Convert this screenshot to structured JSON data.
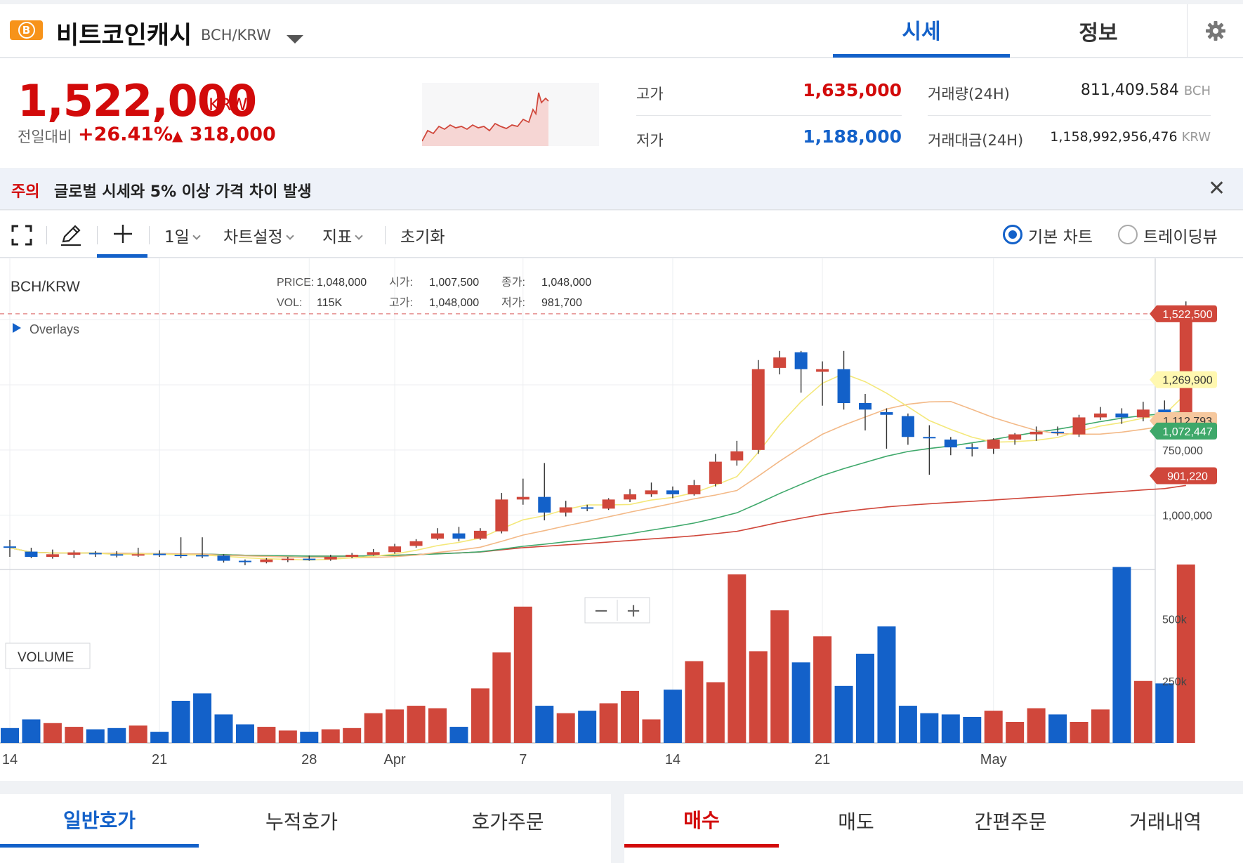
{
  "header": {
    "coin_symbol_glyph": "B",
    "coin_name": "비트코인캐시",
    "pair": "BCH/KRW",
    "tabs": [
      "시세",
      "정보"
    ],
    "settings_icon": "gear-icon"
  },
  "summary": {
    "price": "1,522,000",
    "price_unit": "KRW",
    "change_label": "전일대비",
    "change_percent": "+26.41%",
    "change_arrow": "▲",
    "change_amount": "318,000",
    "high_label": "고가",
    "high_value": "1,635,000",
    "low_label": "저가",
    "low_value": "1,188,000",
    "volume_label": "거래량(24H)",
    "volume_value": "811,409.584",
    "volume_unit": "BCH",
    "amount_label": "거래대금(24H)",
    "amount_value": "1,158,992,956,476",
    "amount_unit": "KRW"
  },
  "warning": {
    "tag": "주의",
    "text": "글로벌 시세와 5% 이상 가격 차이 발생",
    "close_icon": "close-icon"
  },
  "toolbar": {
    "fullscreen_icon": "fullscreen-icon",
    "draw_icon": "pencil-icon",
    "cross_icon": "crosshair-icon",
    "interval": "1일",
    "chart_settings": "차트설정",
    "indicators": "지표",
    "reset": "초기화",
    "view_basic": "기본 차트",
    "view_tradingview": "트레이딩뷰"
  },
  "chart_info": {
    "symbol": "BCH/KRW",
    "price_label": "PRICE:",
    "price_value": "1,048,000",
    "open_label": "시가:",
    "open_value": "1,007,500",
    "close_label": "종가:",
    "close_value": "1,048,000",
    "vol_label": "VOL:",
    "vol_value": "115K",
    "high_label": "고가:",
    "high_value": "1,048,000",
    "low_label": "저가:",
    "low_value": "981,700",
    "overlays": "Overlays",
    "volume_panel": "VOLUME",
    "zoom_minus": "−",
    "zoom_plus": "+"
  },
  "chart_data": {
    "type": "candlestick",
    "title": "",
    "y_ticks": [
      "750,000",
      "1,000,000"
    ],
    "volume_ticks": [
      "250k",
      "500k"
    ],
    "x_ticks": [
      "14",
      "21",
      "28",
      "Apr",
      "7",
      "14",
      "21",
      "May"
    ],
    "price_tags": [
      {
        "label": "1,522,500",
        "value": 1522500,
        "color": "#d0473b"
      },
      {
        "label": "1,269,900",
        "value": 1269900,
        "color": "#fff8b0"
      },
      {
        "label": "1,112,793",
        "value": 1112793,
        "color": "#f6c89e"
      },
      {
        "label": "1,072,447",
        "value": 1072447,
        "color": "#3ea86a"
      },
      {
        "label": "901,220",
        "value": 901220,
        "color": "#d0473b"
      }
    ],
    "ylim": [
      555000,
      1735000
    ],
    "volume_max": 680000,
    "up_color": "#d0473b",
    "down_color": "#1361c9",
    "candles": [
      [
        630,
        625,
        655,
        590,
        60000
      ],
      [
        610,
        590,
        625,
        585,
        95000
      ],
      [
        590,
        600,
        618,
        583,
        80000
      ],
      [
        598,
        607,
        615,
        585,
        65000
      ],
      [
        605,
        600,
        612,
        590,
        55000
      ],
      [
        600,
        598,
        612,
        588,
        60000
      ],
      [
        598,
        600,
        625,
        590,
        70000
      ],
      [
        602,
        598,
        615,
        590,
        45000
      ],
      [
        598,
        595,
        665,
        585,
        170000
      ],
      [
        597,
        594,
        665,
        585,
        200000
      ],
      [
        595,
        575,
        600,
        568,
        115000
      ],
      [
        575,
        570,
        580,
        558,
        75000
      ],
      [
        570,
        580,
        585,
        565,
        65000
      ],
      [
        580,
        583,
        590,
        570,
        50000
      ],
      [
        583,
        580,
        595,
        575,
        45000
      ],
      [
        580,
        590,
        598,
        575,
        55000
      ],
      [
        590,
        598,
        605,
        585,
        60000
      ],
      [
        598,
        608,
        620,
        595,
        120000
      ],
      [
        608,
        630,
        640,
        602,
        135000
      ],
      [
        632,
        650,
        658,
        625,
        150000
      ],
      [
        660,
        680,
        700,
        655,
        140000
      ],
      [
        680,
        660,
        705,
        650,
        65000
      ],
      [
        660,
        690,
        700,
        655,
        220000
      ],
      [
        688,
        810,
        835,
        680,
        365000
      ],
      [
        810,
        820,
        890,
        790,
        550000
      ],
      [
        820,
        760,
        950,
        730,
        150000
      ],
      [
        760,
        780,
        805,
        745,
        120000
      ],
      [
        780,
        775,
        790,
        765,
        130000
      ],
      [
        775,
        810,
        815,
        770,
        160000
      ],
      [
        810,
        830,
        850,
        800,
        210000
      ],
      [
        830,
        845,
        875,
        820,
        95000
      ],
      [
        845,
        830,
        860,
        815,
        215000
      ],
      [
        830,
        865,
        885,
        825,
        330000
      ],
      [
        870,
        955,
        985,
        860,
        245000
      ],
      [
        960,
        995,
        1035,
        940,
        680000
      ],
      [
        1000,
        1310,
        1345,
        985,
        370000
      ],
      [
        1315,
        1355,
        1380,
        1290,
        535000
      ],
      [
        1375,
        1310,
        1380,
        1220,
        325000
      ],
      [
        1300,
        1310,
        1340,
        1170,
        430000
      ],
      [
        1310,
        1180,
        1380,
        1155,
        230000
      ],
      [
        1180,
        1155,
        1215,
        1075,
        360000
      ],
      [
        1145,
        1135,
        1160,
        1005,
        470000
      ],
      [
        1130,
        1050,
        1140,
        1020,
        150000
      ],
      [
        1050,
        1045,
        1095,
        905,
        120000
      ],
      [
        1040,
        1010,
        1050,
        980,
        115000
      ],
      [
        1010,
        1005,
        1025,
        975,
        105000
      ],
      [
        1005,
        1040,
        1045,
        985,
        130000
      ],
      [
        1040,
        1060,
        1065,
        1020,
        85000
      ],
      [
        1060,
        1070,
        1090,
        1035,
        140000
      ],
      [
        1070,
        1065,
        1090,
        1055,
        115000
      ],
      [
        1060,
        1125,
        1135,
        1050,
        85000
      ],
      [
        1125,
        1140,
        1165,
        1115,
        135000
      ],
      [
        1140,
        1125,
        1160,
        1100,
        710000
      ],
      [
        1125,
        1155,
        1185,
        1110,
        250000
      ],
      [
        1155,
        1135,
        1190,
        1120,
        240000
      ],
      [
        1140,
        1525,
        1570,
        1135,
        720000
      ]
    ]
  }
}
